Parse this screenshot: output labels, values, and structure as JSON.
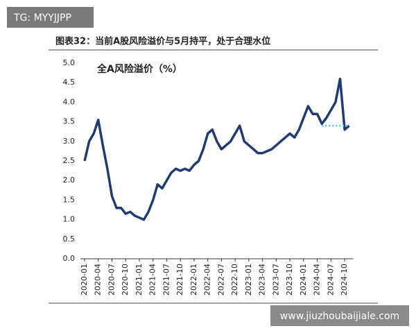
{
  "watermark": "TG: MYYJJPP",
  "footer_watermark": "www.jiuzhoubaijiale.com",
  "chart_data": {
    "type": "line",
    "title": "图表32：当前A股风险溢价与5月持平，处于合理水位",
    "series_label": "全A风险溢价（%）",
    "x": [
      "2020-01",
      "2020-02",
      "2020-03",
      "2020-04",
      "2020-05",
      "2020-06",
      "2020-07",
      "2020-08",
      "2020-09",
      "2020-10",
      "2020-11",
      "2020-12",
      "2021-01",
      "2021-02",
      "2021-03",
      "2021-04",
      "2021-05",
      "2021-06",
      "2021-07",
      "2021-08",
      "2021-09",
      "2021-10",
      "2021-11",
      "2021-12",
      "2022-01",
      "2022-02",
      "2022-03",
      "2022-04",
      "2022-05",
      "2022-06",
      "2022-07",
      "2022-08",
      "2022-09",
      "2022-10",
      "2022-11",
      "2022-12",
      "2023-01",
      "2023-02",
      "2023-03",
      "2023-04",
      "2023-05",
      "2023-06",
      "2023-07",
      "2023-08",
      "2023-09",
      "2023-10",
      "2023-11",
      "2023-12",
      "2024-01",
      "2024-02",
      "2024-03",
      "2024-04",
      "2024-05",
      "2024-06",
      "2024-07",
      "2024-08",
      "2024-09",
      "2024-10",
      "2024-11"
    ],
    "series": [
      {
        "color": "#1f3b73",
        "values": [
          2.5,
          3.0,
          3.2,
          3.55,
          2.9,
          2.3,
          1.6,
          1.3,
          1.3,
          1.15,
          1.2,
          1.1,
          1.05,
          1.0,
          1.2,
          1.5,
          1.9,
          1.8,
          2.0,
          2.2,
          2.3,
          2.25,
          2.3,
          2.25,
          2.4,
          2.5,
          2.8,
          3.2,
          3.3,
          3.0,
          2.8,
          2.9,
          3.0,
          3.2,
          3.4,
          3.0,
          2.9,
          2.8,
          2.7,
          2.7,
          2.75,
          2.8,
          2.9,
          3.0,
          3.1,
          3.2,
          3.1,
          3.3,
          3.6,
          3.9,
          3.7,
          3.7,
          3.45,
          3.6,
          3.8,
          4.0,
          4.6,
          3.3,
          3.4
        ]
      }
    ],
    "reference_line": {
      "value": 3.4,
      "x": [
        "2024-05",
        "2024-11"
      ],
      "color": "#4fc3e8"
    },
    "xticks": [
      "2020-01",
      "2020-04",
      "2020-07",
      "2020-10",
      "2021-01",
      "2021-04",
      "2021-07",
      "2021-10",
      "2022-01",
      "2022-04",
      "2022-07",
      "2022-10",
      "2023-01",
      "2023-04",
      "2023-07",
      "2023-10",
      "2024-01",
      "2024-04",
      "2024-07",
      "2024-10"
    ],
    "ylim": [
      0,
      5
    ],
    "yticks": [
      {
        "value": 0,
        "label": "0.0"
      },
      {
        "value": 0.5,
        "label": "0.5"
      },
      {
        "value": 1,
        "label": "1.0"
      },
      {
        "value": 1.5,
        "label": "1.5"
      },
      {
        "value": 2,
        "label": "2.0"
      },
      {
        "value": 2.5,
        "label": "2.5"
      },
      {
        "value": 3,
        "label": "3.0"
      },
      {
        "value": 3.5,
        "label": "3.5"
      },
      {
        "value": 4,
        "label": "4.0"
      },
      {
        "value": 4.5,
        "label": "4.5"
      },
      {
        "value": 5,
        "label": "5.0"
      }
    ]
  }
}
